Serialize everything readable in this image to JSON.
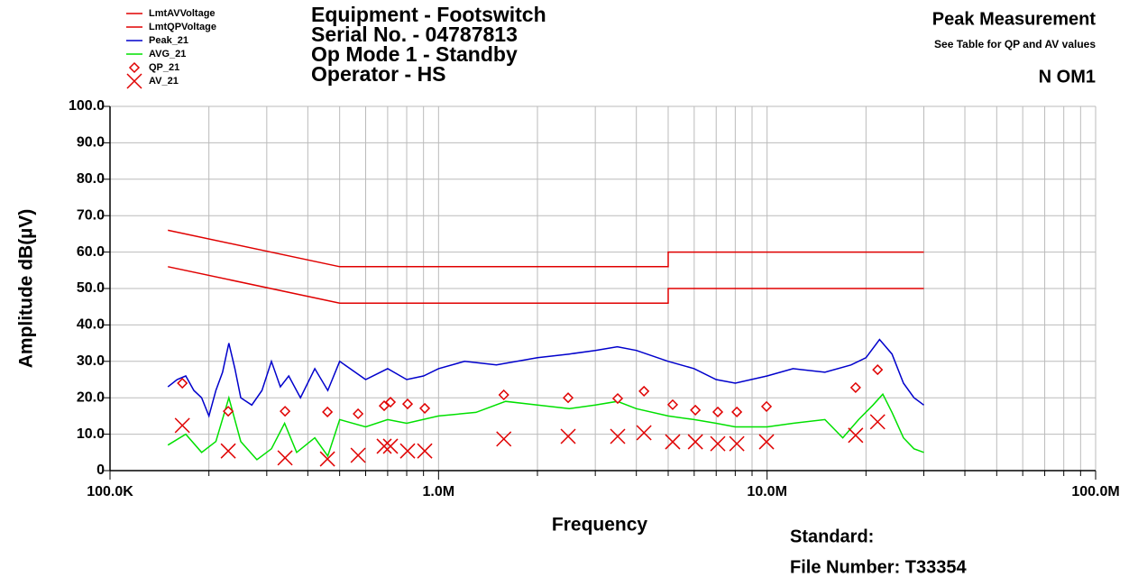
{
  "chart_data": {
    "type": "line",
    "title_lines": [
      "Equipment - Footswitch",
      "Serial No. - 04787813",
      "Op Mode 1 - Standby",
      "Operator - HS"
    ],
    "right_title": "Peak Measurement",
    "right_subtitle": "See Table for QP and AV  values",
    "right_label": "N OM1",
    "xlabel": "Frequency",
    "ylabel": "Amplitude dB(µV)",
    "footer": [
      "Standard:",
      "File Number: T33354"
    ],
    "xscale": "log",
    "grid": true,
    "xlim": [
      0.1,
      100
    ],
    "xticks": [
      {
        "value": 0.1,
        "label": "100.0K"
      },
      {
        "value": 1,
        "label": "1.0M"
      },
      {
        "value": 10,
        "label": "10.0M"
      },
      {
        "value": 100,
        "label": "100.0M"
      }
    ],
    "x_minor_ticks": [
      0.2,
      0.3,
      0.4,
      0.5,
      0.6,
      0.7,
      0.8,
      0.9,
      2,
      3,
      4,
      5,
      6,
      7,
      8,
      9,
      20,
      30,
      40,
      50,
      60,
      70,
      80,
      90
    ],
    "ylim": [
      0,
      100
    ],
    "yticks": [
      0,
      {
        "value": 10,
        "label": "10.0"
      },
      {
        "value": 20,
        "label": "20.0"
      },
      {
        "value": 30,
        "label": "30.0"
      },
      {
        "value": 40,
        "label": "40.0"
      },
      {
        "value": 50,
        "label": "50.0"
      },
      {
        "value": 60,
        "label": "60.0"
      },
      {
        "value": 70,
        "label": "70.0"
      },
      {
        "value": 80,
        "label": "80.0"
      },
      {
        "value": 90,
        "label": "90.0"
      },
      {
        "value": 100,
        "label": "100.0"
      }
    ],
    "series": [
      {
        "name": "LmtAVVoltage",
        "color": "#e00000",
        "style": "line",
        "x": [
          0.15,
          0.5,
          5,
          5,
          30
        ],
        "values": [
          56,
          46,
          46,
          50,
          50
        ]
      },
      {
        "name": "LmtQPVoltage",
        "color": "#e00000",
        "style": "line",
        "x": [
          0.15,
          0.5,
          5,
          5,
          30
        ],
        "values": [
          66,
          56,
          56,
          60,
          60
        ]
      },
      {
        "name": "Peak_21",
        "color": "#0000cc",
        "style": "line",
        "x": [
          0.15,
          0.16,
          0.17,
          0.18,
          0.19,
          0.2,
          0.21,
          0.22,
          0.23,
          0.24,
          0.25,
          0.27,
          0.29,
          0.31,
          0.33,
          0.35,
          0.38,
          0.42,
          0.46,
          0.5,
          0.6,
          0.7,
          0.8,
          0.9,
          1.0,
          1.2,
          1.5,
          2.0,
          2.5,
          3.0,
          3.5,
          4.0,
          5.0,
          6.0,
          7.0,
          8.0,
          10,
          12,
          15,
          18,
          20,
          22,
          24,
          26,
          28,
          30
        ],
        "values": [
          23,
          25,
          26,
          22,
          20,
          15,
          22,
          27,
          35,
          28,
          20,
          18,
          22,
          30,
          23,
          26,
          20,
          28,
          22,
          30,
          25,
          28,
          25,
          26,
          28,
          30,
          29,
          31,
          32,
          33,
          34,
          33,
          30,
          28,
          25,
          24,
          26,
          28,
          27,
          29,
          31,
          36,
          32,
          24,
          20,
          18
        ]
      },
      {
        "name": "AVG_21",
        "color": "#00e000",
        "style": "line",
        "x": [
          0.15,
          0.17,
          0.19,
          0.21,
          0.23,
          0.25,
          0.28,
          0.31,
          0.34,
          0.37,
          0.42,
          0.46,
          0.5,
          0.6,
          0.7,
          0.8,
          1.0,
          1.3,
          1.6,
          2.0,
          2.5,
          3.0,
          3.5,
          4.0,
          5.0,
          6.0,
          7,
          8,
          10,
          12,
          15,
          17,
          19,
          21,
          22.5,
          24,
          26,
          28,
          30
        ],
        "values": [
          7,
          10,
          5,
          8,
          20,
          8,
          3,
          6,
          13,
          5,
          9,
          4,
          14,
          12,
          14,
          13,
          15,
          16,
          19,
          18,
          17,
          18,
          19,
          17,
          15,
          14,
          13,
          12,
          12,
          13,
          14,
          9,
          14,
          18,
          21,
          16,
          9,
          6,
          5
        ]
      },
      {
        "name": "QP_21",
        "color": "#e00000",
        "style": "diamond",
        "x": [
          0.166,
          0.229,
          0.341,
          0.459,
          0.569,
          0.683,
          0.714,
          0.805,
          0.908,
          1.58,
          2.48,
          3.51,
          4.22,
          5.16,
          6.05,
          7.08,
          8.09,
          9.96,
          18.6,
          21.7
        ],
        "values": [
          24.0,
          16.3,
          16.3,
          16.1,
          15.6,
          17.8,
          18.8,
          18.3,
          17.1,
          20.8,
          20.0,
          19.8,
          21.8,
          18.1,
          16.6,
          16.1,
          16.1,
          17.6,
          22.8,
          27.7
        ]
      },
      {
        "name": "AV_21",
        "color": "#e00000",
        "style": "cross",
        "x": [
          0.166,
          0.229,
          0.341,
          0.459,
          0.569,
          0.683,
          0.714,
          0.805,
          0.908,
          1.58,
          2.48,
          3.51,
          4.22,
          5.16,
          6.05,
          7.08,
          8.09,
          9.96,
          18.6,
          21.7
        ],
        "values": [
          12.4,
          5.4,
          3.5,
          3.2,
          4.2,
          6.7,
          6.7,
          5.4,
          5.4,
          8.7,
          9.4,
          9.4,
          10.4,
          7.9,
          7.9,
          7.4,
          7.4,
          7.9,
          9.7,
          13.4
        ]
      }
    ]
  }
}
